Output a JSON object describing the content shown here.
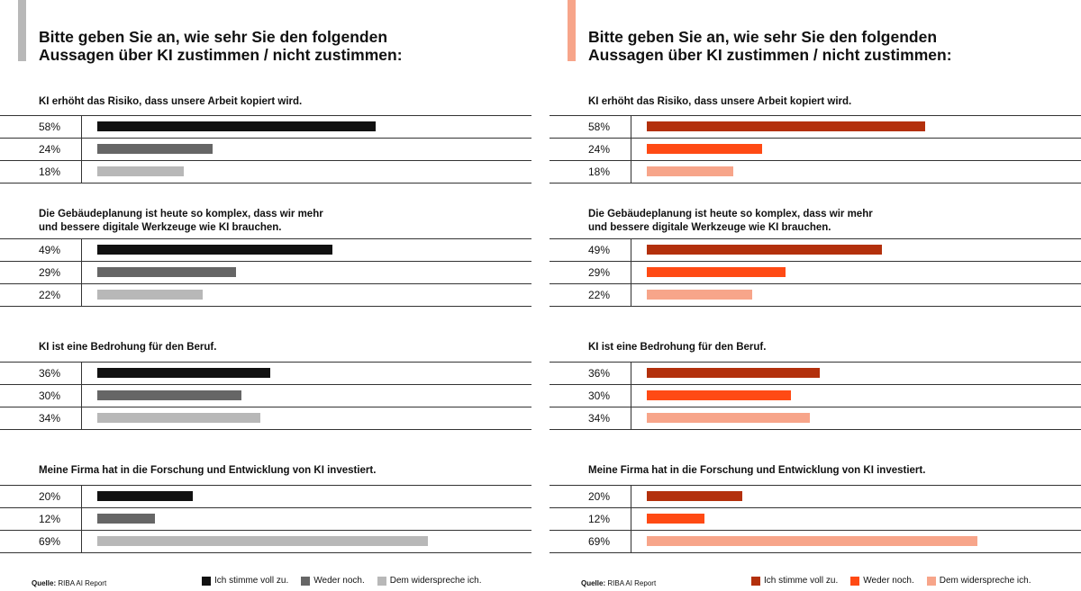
{
  "panels": [
    {
      "id": "left",
      "title_line1": "Bitte geben Sie an, wie sehr Sie den folgenden",
      "title_line2": "Aussagen über KI zustimmen / nicht zustimmen:",
      "accent_color": "#b8b8b8",
      "colors": [
        "#111111",
        "#666666",
        "#b8b8b8"
      ]
    },
    {
      "id": "right",
      "title_line1": "Bitte geben Sie an, wie sehr Sie den folgenden",
      "title_line2": "Aussagen über KI zustimmen / nicht zustimmen:",
      "accent_color": "#f7a58a",
      "colors": [
        "#b3300c",
        "#ff4a14",
        "#f7a58a"
      ]
    }
  ],
  "source_label": "Quelle:",
  "source_text": "RIBA AI Report",
  "legend": [
    "Ich stimme voll zu.",
    "Weder noch.",
    "Dem widerspreche ich."
  ],
  "chart_data": {
    "type": "bar",
    "orientation": "horizontal",
    "title": "Bitte geben Sie an, wie sehr Sie den folgenden Aussagen über KI zustimmen / nicht zustimmen:",
    "series_names": [
      "Ich stimme voll zu.",
      "Weder noch.",
      "Dem widerspreche ich."
    ],
    "questions": [
      {
        "line1": "KI erhöht das Risiko, dass unsere Arbeit kopiert wird.",
        "line2": "",
        "values": [
          58,
          24,
          18
        ],
        "labels": [
          "58%",
          "24%",
          "18%"
        ]
      },
      {
        "line1": "Die Gebäudeplanung ist heute so komplex, dass wir mehr",
        "line2": "und bessere digitale Werkzeuge wie KI brauchen.",
        "values": [
          49,
          29,
          22
        ],
        "labels": [
          "49%",
          "29%",
          "22%"
        ]
      },
      {
        "line1": "KI ist eine Bedrohung für den Beruf.",
        "line2": "",
        "values": [
          36,
          30,
          34
        ],
        "labels": [
          "36%",
          "30%",
          "34%"
        ]
      },
      {
        "line1": "Meine Firma hat in die Forschung und Entwicklung von KI investiert.",
        "line2": "",
        "values": [
          20,
          12,
          69
        ],
        "labels": [
          "20%",
          "12%",
          "69%"
        ]
      }
    ],
    "xlim": [
      0,
      100
    ],
    "grid": false,
    "legend_position": "bottom"
  }
}
